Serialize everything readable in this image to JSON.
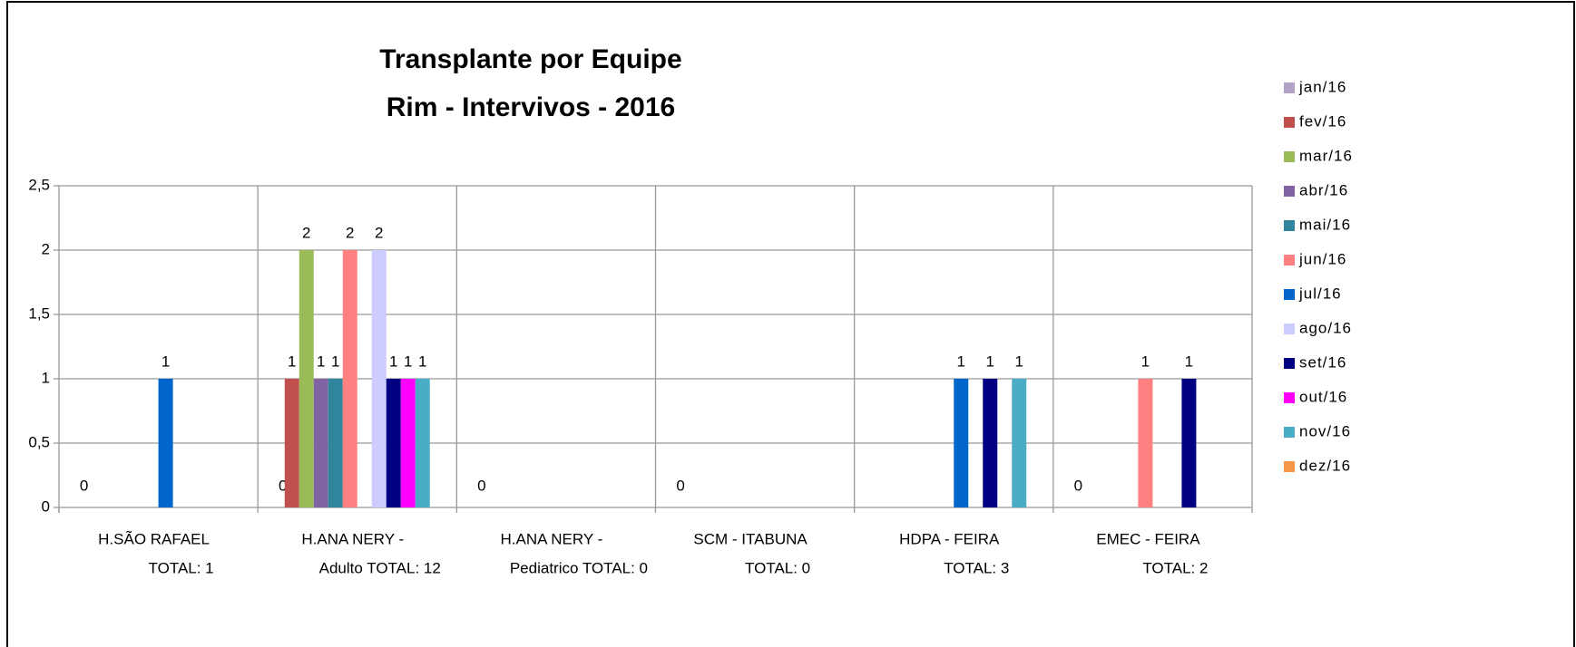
{
  "chart_data": {
    "type": "bar",
    "title": "Transplante por Equipe",
    "subtitle": "Rim - Intervivos - 2016",
    "categories": [
      [
        "H.SÃO RAFAEL",
        "TOTAL: 1"
      ],
      [
        "H.ANA NERY -",
        "Adulto    TOTAL: 12"
      ],
      [
        "H.ANA NERY -",
        "Pediatrico TOTAL: 0"
      ],
      [
        "SCM - ITABUNA",
        "TOTAL: 0"
      ],
      [
        "HDPA - FEIRA",
        "TOTAL: 3"
      ],
      [
        "EMEC - FEIRA",
        "TOTAL: 2"
      ]
    ],
    "series": [
      {
        "name": "jan/16",
        "color": "#b3a2c7",
        "values": [
          0,
          0,
          0,
          0,
          null,
          0
        ]
      },
      {
        "name": "fev/16",
        "color": "#c0504d",
        "values": [
          null,
          1,
          null,
          null,
          null,
          null
        ]
      },
      {
        "name": "mar/16",
        "color": "#9bbb59",
        "values": [
          null,
          2,
          null,
          null,
          null,
          null
        ]
      },
      {
        "name": "abr/16",
        "color": "#8064a2",
        "values": [
          null,
          1,
          null,
          null,
          null,
          null
        ]
      },
      {
        "name": "mai/16",
        "color": "#31859c",
        "values": [
          null,
          1,
          null,
          null,
          null,
          null
        ]
      },
      {
        "name": "jun/16",
        "color": "#ff8080",
        "values": [
          null,
          2,
          null,
          null,
          null,
          1
        ]
      },
      {
        "name": "jul/16",
        "color": "#0066cc",
        "values": [
          1,
          null,
          null,
          null,
          1,
          null
        ]
      },
      {
        "name": "ago/16",
        "color": "#ccccff",
        "values": [
          null,
          2,
          null,
          null,
          null,
          null
        ]
      },
      {
        "name": "set/16",
        "color": "#000080",
        "values": [
          null,
          1,
          null,
          null,
          1,
          1
        ]
      },
      {
        "name": "out/16",
        "color": "#ff00ff",
        "values": [
          null,
          1,
          null,
          null,
          null,
          null
        ]
      },
      {
        "name": "nov/16",
        "color": "#4bacc6",
        "values": [
          null,
          1,
          null,
          null,
          1,
          null
        ]
      },
      {
        "name": "dez/16",
        "color": "#f79646",
        "values": [
          null,
          null,
          null,
          null,
          null,
          null
        ]
      }
    ],
    "ylim": [
      0,
      2.5
    ],
    "yticks": [
      0,
      {
        "value": 0.5,
        "label": "0,5"
      },
      1,
      {
        "value": 1.5,
        "label": "1,5"
      },
      2,
      {
        "value": 2.5,
        "label": "2,5"
      }
    ],
    "grid": true,
    "legend": "right"
  }
}
